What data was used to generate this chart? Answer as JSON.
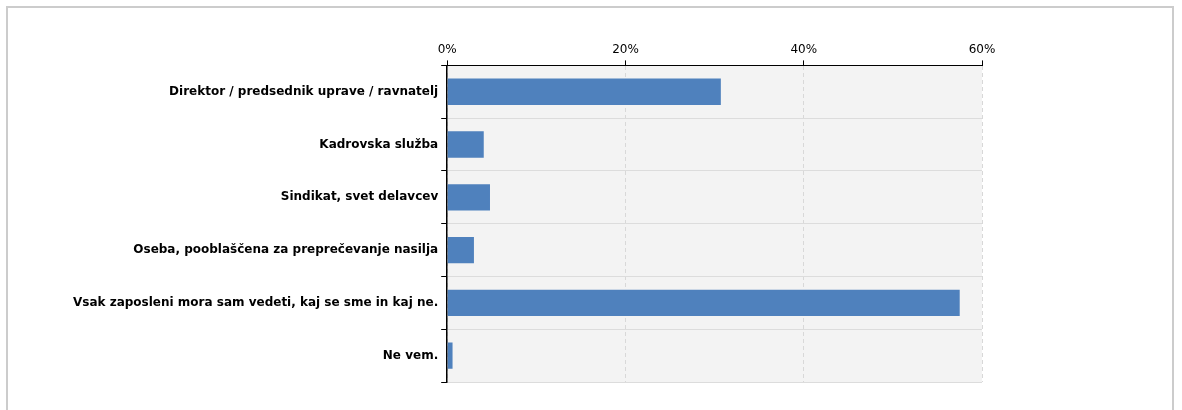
{
  "chart_data": {
    "type": "bar",
    "orientation": "horizontal",
    "categories": [
      "Direktor / predsednik uprave / ravnatelj",
      "Kadrovska služba",
      "Sindikat, svet delavcev",
      "Oseba, pooblaščena za preprečevanje nasilja",
      "Vsak zaposleni mora sam vedeti, kaj se sme in kaj ne.",
      "Ne vem."
    ],
    "values": [
      30.7,
      4.1,
      4.8,
      3.0,
      57.5,
      0.6
    ],
    "color": "#4f81bd",
    "xlim": [
      0,
      60
    ],
    "xticks": [
      {
        "value": 0,
        "label": "0%"
      },
      {
        "value": 20,
        "label": "20%"
      },
      {
        "value": 40,
        "label": "40%"
      },
      {
        "value": 60,
        "label": "60%"
      }
    ],
    "grid": true
  }
}
